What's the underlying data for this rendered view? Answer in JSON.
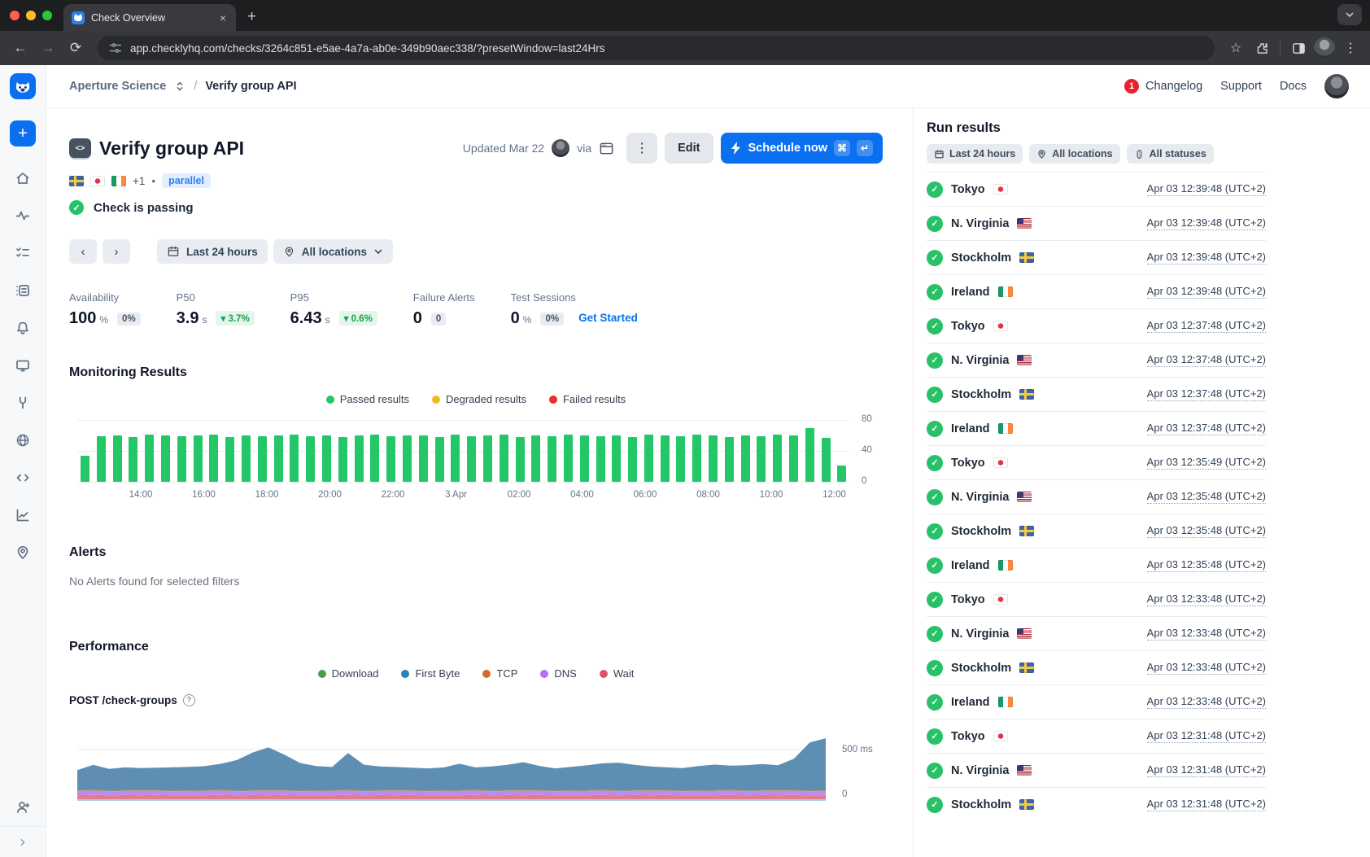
{
  "theme": {
    "accent": "#0b70f0",
    "passed_green": "#24c768",
    "fail_red": "#ef2b2b",
    "warn_yellow": "#f2b824"
  },
  "icons": {
    "back": "←",
    "forward": "→",
    "reload": "⟳",
    "star": "☆",
    "menu": "⋮",
    "close": "×",
    "new_tab": "+",
    "window_menu_chevron": "⌄",
    "plus": "+",
    "prev": "‹",
    "next": "›",
    "kebab": "⋮",
    "cmd": "⌘",
    "enter": "↵",
    "dot": "•",
    "check": "✓",
    "help": "?"
  },
  "browser": {
    "tab_title": "Check Overview",
    "url": "app.checklyhq.com/checks/3264c851-e5ae-4a7a-ab0e-349b90aec338/?presetWindow=last24Hrs"
  },
  "breadcrumb": {
    "account": "Aperture Science",
    "separator": "/",
    "page": "Verify group API"
  },
  "topnav": {
    "changelog_count": "1",
    "changelog": "Changelog",
    "support": "Support",
    "docs": "Docs"
  },
  "header": {
    "title": "Verify group API",
    "flags": [
      "se",
      "jp",
      "ie"
    ],
    "more_flags": "+1",
    "parallel_badge": "parallel",
    "status": "Check is passing",
    "updated": "Updated Mar 22",
    "via": "via",
    "edit": "Edit",
    "schedule": "Schedule now"
  },
  "filters": {
    "time": "Last 24 hours",
    "locations": "All locations"
  },
  "stats": [
    {
      "label": "Availability",
      "value": "100",
      "unit": "%",
      "badge": "0%",
      "badge_style": "neutral"
    },
    {
      "label": "P50",
      "value": "3.9",
      "unit": "s",
      "badge": "3.7%",
      "badge_style": "downgreen"
    },
    {
      "label": "P95",
      "value": "6.43",
      "unit": "s",
      "badge": "0.6%",
      "badge_style": "downgreen"
    },
    {
      "label": "Failure Alerts",
      "value": "0",
      "unit": "",
      "badge": "0",
      "badge_style": "neutral"
    },
    {
      "label": "Test Sessions",
      "value": "0",
      "unit": "%",
      "badge": "0%",
      "badge_style": "neutral",
      "link": "Get Started"
    }
  ],
  "sections": {
    "monitoring": "Monitoring Results",
    "alerts": "Alerts",
    "alerts_empty": "No Alerts found for selected filters",
    "performance": "Performance",
    "endpoint": "POST /check-groups"
  },
  "run_results": {
    "title": "Run results",
    "chips": [
      "Last 24 hours",
      "All locations",
      "All statuses"
    ],
    "rows": [
      {
        "location": "Tokyo",
        "flag": "jp",
        "time": "Apr 03 12:39:48 (UTC+2)"
      },
      {
        "location": "N. Virginia",
        "flag": "us",
        "time": "Apr 03 12:39:48 (UTC+2)"
      },
      {
        "location": "Stockholm",
        "flag": "se",
        "time": "Apr 03 12:39:48 (UTC+2)"
      },
      {
        "location": "Ireland",
        "flag": "ie",
        "time": "Apr 03 12:39:48 (UTC+2)"
      },
      {
        "location": "Tokyo",
        "flag": "jp",
        "time": "Apr 03 12:37:48 (UTC+2)"
      },
      {
        "location": "N. Virginia",
        "flag": "us",
        "time": "Apr 03 12:37:48 (UTC+2)"
      },
      {
        "location": "Stockholm",
        "flag": "se",
        "time": "Apr 03 12:37:48 (UTC+2)"
      },
      {
        "location": "Ireland",
        "flag": "ie",
        "time": "Apr 03 12:37:48 (UTC+2)"
      },
      {
        "location": "Tokyo",
        "flag": "jp",
        "time": "Apr 03 12:35:49 (UTC+2)"
      },
      {
        "location": "N. Virginia",
        "flag": "us",
        "time": "Apr 03 12:35:48 (UTC+2)"
      },
      {
        "location": "Stockholm",
        "flag": "se",
        "time": "Apr 03 12:35:48 (UTC+2)"
      },
      {
        "location": "Ireland",
        "flag": "ie",
        "time": "Apr 03 12:35:48 (UTC+2)"
      },
      {
        "location": "Tokyo",
        "flag": "jp",
        "time": "Apr 03 12:33:48 (UTC+2)"
      },
      {
        "location": "N. Virginia",
        "flag": "us",
        "time": "Apr 03 12:33:48 (UTC+2)"
      },
      {
        "location": "Stockholm",
        "flag": "se",
        "time": "Apr 03 12:33:48 (UTC+2)"
      },
      {
        "location": "Ireland",
        "flag": "ie",
        "time": "Apr 03 12:33:48 (UTC+2)"
      },
      {
        "location": "Tokyo",
        "flag": "jp",
        "time": "Apr 03 12:31:48 (UTC+2)"
      },
      {
        "location": "N. Virginia",
        "flag": "us",
        "time": "Apr 03 12:31:48 (UTC+2)"
      },
      {
        "location": "Stockholm",
        "flag": "se",
        "time": "Apr 03 12:31:48 (UTC+2)"
      }
    ]
  },
  "chart_data": [
    {
      "type": "bar",
      "title": "Monitoring Results",
      "legend": [
        "Passed results",
        "Degraded results",
        "Failed results"
      ],
      "legend_colors": [
        "#24c768",
        "#f2b824",
        "#ef2b2b"
      ],
      "bar_color": "#24c768",
      "x_ticks": [
        "14:00",
        "16:00",
        "18:00",
        "20:00",
        "22:00",
        "3 Apr",
        "02:00",
        "04:00",
        "06:00",
        "08:00",
        "10:00",
        "12:00"
      ],
      "y_ticks": [
        80,
        40,
        0
      ],
      "ylim": [
        0,
        80
      ],
      "series_name": "Passed results",
      "values": [
        34,
        59,
        60,
        58,
        61,
        60,
        59,
        60,
        61,
        58,
        60,
        59,
        60,
        61,
        59,
        60,
        58,
        60,
        61,
        59,
        60,
        60,
        58,
        61,
        59,
        60,
        61,
        58,
        60,
        59,
        61,
        60,
        59,
        60,
        58,
        61,
        60,
        59,
        61,
        60,
        58,
        60,
        59,
        61,
        60,
        70,
        57,
        21
      ]
    },
    {
      "type": "area",
      "title": "POST /check-groups",
      "subtitle_of": "Performance",
      "legend": [
        "Download",
        "First Byte",
        "TCP",
        "DNS",
        "Wait"
      ],
      "legend_colors": [
        "#4a9d4e",
        "#2e7fb5",
        "#cf6c2e",
        "#b76ef0",
        "#d9536f"
      ],
      "fill_colors": {
        "First Byte": "#5e8fb3",
        "TCP": "#cf8a4a",
        "DNS": "#c08ae8",
        "Wait": "#e27d90"
      },
      "unit": "ms",
      "y_gridline": 500,
      "y_gridline_label": "500 ms",
      "y_zero_label": "0",
      "series": [
        {
          "name": "Wait",
          "values": [
            55,
            58,
            54,
            56,
            55,
            57,
            54,
            55,
            55,
            58,
            54,
            56,
            55,
            57,
            54,
            55,
            55,
            58,
            54,
            56,
            55,
            57,
            54,
            55,
            55,
            58,
            54,
            56,
            55,
            57,
            54,
            55,
            55,
            58,
            54,
            56,
            55,
            57,
            54,
            55,
            55,
            58,
            54,
            56,
            55,
            57,
            54,
            55
          ]
        },
        {
          "name": "DNS",
          "values": [
            40,
            42,
            38,
            40,
            41,
            39,
            40,
            40,
            40,
            42,
            38,
            40,
            41,
            39,
            40,
            40,
            40,
            42,
            38,
            40,
            41,
            39,
            40,
            40,
            40,
            42,
            38,
            40,
            41,
            39,
            40,
            40,
            40,
            42,
            38,
            40,
            41,
            39,
            40,
            40,
            40,
            42,
            38,
            40,
            41,
            39,
            40,
            40
          ]
        },
        {
          "name": "TCP",
          "values": [
            5,
            6,
            5,
            5,
            6,
            5,
            5,
            5,
            5,
            6,
            5,
            5,
            6,
            5,
            5,
            5,
            5,
            6,
            5,
            5,
            6,
            5,
            5,
            5,
            5,
            6,
            5,
            5,
            6,
            5,
            5,
            5,
            5,
            6,
            5,
            5,
            6,
            5,
            5,
            5,
            5,
            6,
            5,
            5,
            6,
            5,
            5,
            5
          ]
        },
        {
          "name": "First Byte",
          "values": [
            200,
            245,
            215,
            225,
            218,
            222,
            228,
            232,
            238,
            255,
            300,
            370,
            420,
            350,
            270,
            240,
            230,
            360,
            255,
            235,
            228,
            222,
            218,
            225,
            262,
            220,
            238,
            250,
            275,
            240,
            218,
            232,
            246,
            260,
            275,
            250,
            233,
            226,
            220,
            240,
            253,
            238,
            250,
            258,
            246,
            310,
            470,
            510
          ]
        }
      ]
    }
  ]
}
